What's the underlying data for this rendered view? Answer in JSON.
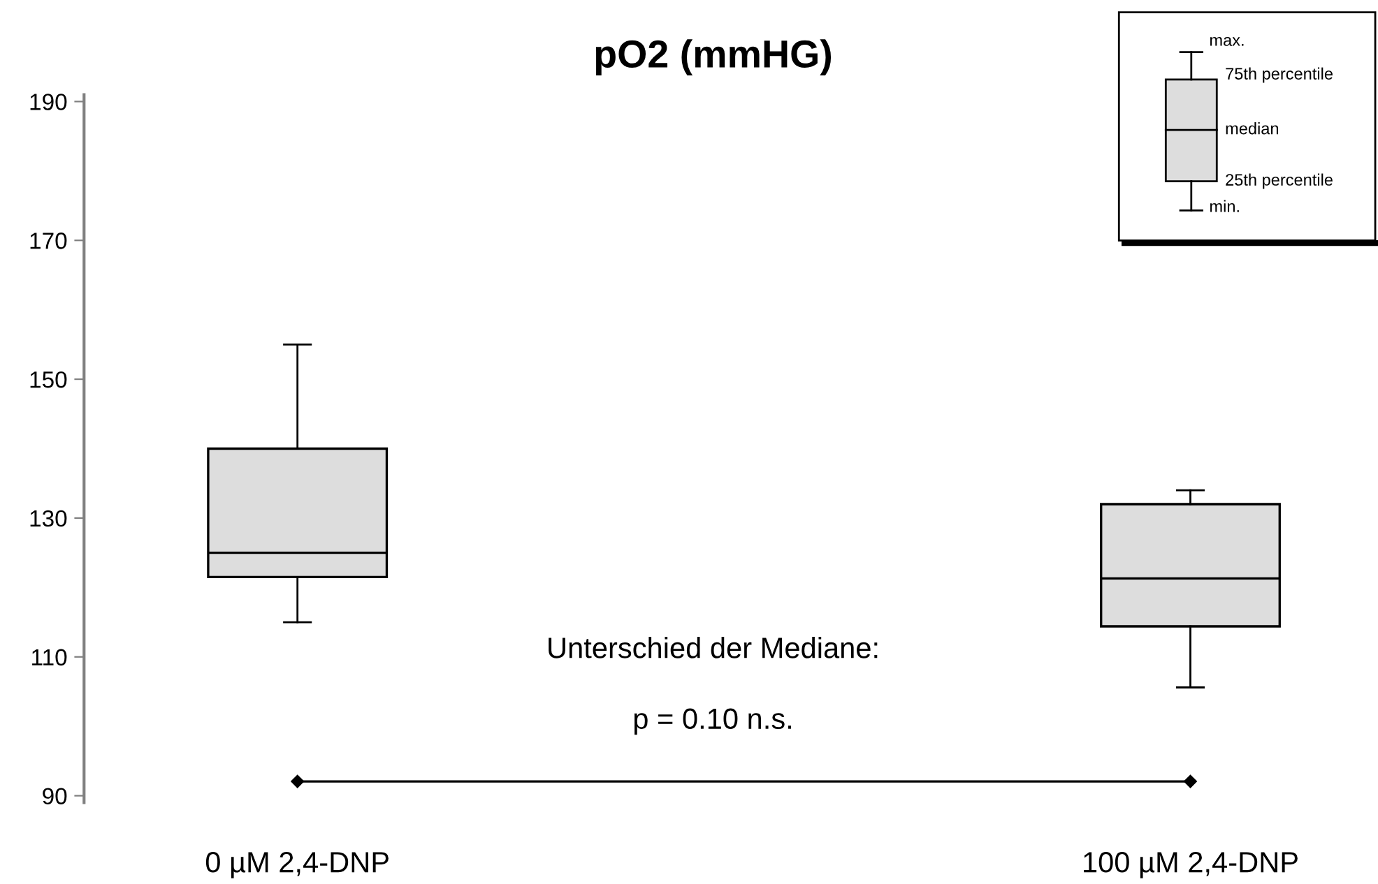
{
  "chart_data": {
    "type": "box",
    "title": "pO2 (mmHG)",
    "categories": [
      "0 µM 2,4-DNP",
      "100 µM 2,4-DNP"
    ],
    "series": [
      {
        "color": "#dddddd",
        "boxes": [
          {
            "low": 115,
            "q1": 121.5,
            "median": 125,
            "q3": 140,
            "high": 155
          },
          {
            "low": 105.6,
            "q1": 114.4,
            "median": 121.3,
            "q3": 132,
            "high": 134
          }
        ]
      }
    ],
    "ylim": [
      89,
      191
    ],
    "yticks": [
      90,
      110,
      130,
      150,
      170,
      190
    ],
    "grid": false,
    "annotations": [
      "Unterschied der Mediane:",
      "p = 0.10 n.s.",
      "max.",
      "75th percentile",
      "median",
      "25th percentile",
      "min."
    ]
  }
}
